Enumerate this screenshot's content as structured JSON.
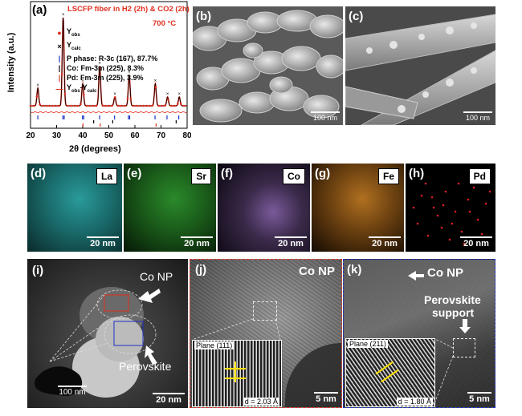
{
  "panels": {
    "a": {
      "label": "(a)"
    },
    "b": {
      "label": "(b)",
      "scale": "100 nm"
    },
    "c": {
      "label": "(c)",
      "scale": "100 nm"
    },
    "d": {
      "label": "(d)",
      "element": "La",
      "scale": "20 nm"
    },
    "e": {
      "label": "(e)",
      "element": "Sr",
      "scale": "20 nm"
    },
    "f": {
      "label": "(f)",
      "element": "Co",
      "scale": "20 nm"
    },
    "g": {
      "label": "(g)",
      "element": "Fe",
      "scale": "20 nm"
    },
    "h": {
      "label": "(h)",
      "element": "Pd",
      "scale": "20 nm"
    },
    "i": {
      "label": "(i)",
      "co_np": "Co NP",
      "perovskite": "Perovskite",
      "scale_left": "100 nm",
      "scale_right": "20 nm"
    },
    "j": {
      "label": "(j)",
      "co_np": "Co NP",
      "plane": "Plane (111)",
      "d": "d = 2.03 Å",
      "scale": "5 nm"
    },
    "k": {
      "label": "(k)",
      "co_np": "Co NP",
      "support1": "Perovskite",
      "support2": "support",
      "plane": "Plane (211)",
      "d": "d = 1.80 Å",
      "scale": "5 nm"
    }
  },
  "chart_data": {
    "type": "line",
    "title": "LSCFP fiber in H2 (2h) & CO2 (2h)",
    "temperature": "700 °C",
    "xlabel": "2θ (degrees)",
    "ylabel": "Intensity (a.u.)",
    "xlim": [
      20,
      80
    ],
    "xticks": [
      20,
      30,
      40,
      50,
      60,
      70,
      80
    ],
    "legend": [
      {
        "name": "Yobs",
        "base": "Y",
        "sub": "obs",
        "marker": "circle",
        "color": "#e03020"
      },
      {
        "name": "Ycalc",
        "base": "Y",
        "sub": "calc",
        "marker": "x",
        "color": "#000000"
      },
      {
        "name": "P phase: R-3c (167), 87.7%",
        "marker": "bar",
        "color": "#1a33c8"
      },
      {
        "name": "Co: Fm-3m (225), 8.3%",
        "marker": "bar",
        "color": "#000000"
      },
      {
        "name": "Pd: Fm-3m (225), 3.9%",
        "marker": "bar",
        "color": "#e03020"
      },
      {
        "name": "Yobs-Ycalc",
        "base": "Y",
        "sub": "obs",
        "base2": "-Y",
        "sub2": "calc",
        "marker": "line",
        "color": "#e03020"
      }
    ],
    "peaks": [
      {
        "x": 22.8,
        "y": 0.2
      },
      {
        "x": 32.5,
        "y": 1.0
      },
      {
        "x": 40.0,
        "y": 0.25
      },
      {
        "x": 46.5,
        "y": 0.45
      },
      {
        "x": 52.3,
        "y": 0.1
      },
      {
        "x": 57.8,
        "y": 0.35
      },
      {
        "x": 67.8,
        "y": 0.25
      },
      {
        "x": 72.5,
        "y": 0.1
      },
      {
        "x": 77.0,
        "y": 0.1
      }
    ],
    "ticks_P": [
      22.8,
      32.4,
      32.9,
      39.9,
      40.4,
      46.5,
      52.2,
      57.5,
      58.0,
      67.7,
      72.3,
      76.8
    ],
    "ticks_Co": [
      44.2,
      51.5,
      75.8
    ],
    "ticks_Pd": [
      40.1,
      46.7,
      68.1
    ]
  }
}
